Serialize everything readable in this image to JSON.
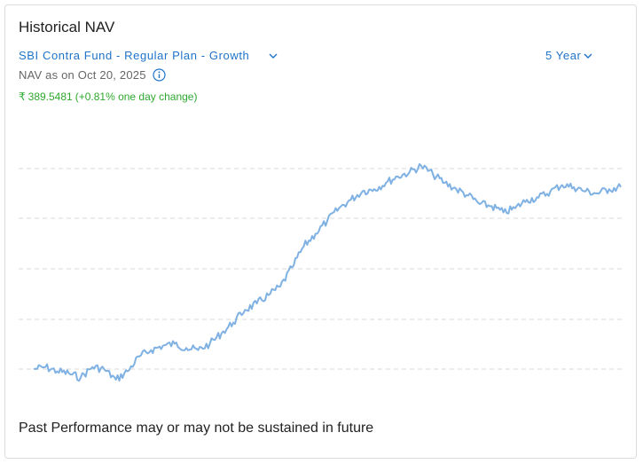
{
  "header": {
    "title": "Historical NAV",
    "fund_selected": "SBI Contra Fund - Regular Plan - Growth",
    "period_selected": "5 Year",
    "nav_as_of": "NAV as on Oct 20, 2025",
    "nav_value": "389.5481",
    "nav_change": "(+0.81% one day change)",
    "currency_symbol": "₹"
  },
  "footer": {
    "disclaimer": "Past Performance may or may not be sustained in future"
  },
  "colors": {
    "line": "#7fb1e3",
    "accent": "#1f73c9",
    "positive": "#2fa82f",
    "grid": "#d9d9d9"
  },
  "chart_data": {
    "type": "line",
    "title": "",
    "xlabel": "",
    "ylabel": "",
    "grid": true,
    "legend": "none",
    "x": [
      0,
      2,
      4,
      6,
      8,
      10,
      12,
      14,
      16,
      18,
      20,
      22,
      24,
      26,
      28,
      30,
      32,
      34,
      36,
      38,
      40,
      42,
      44,
      46,
      48,
      50,
      52,
      54,
      56,
      58,
      60,
      62,
      64,
      66,
      68,
      70,
      72,
      74,
      76,
      78,
      80,
      82,
      84,
      86,
      88,
      90,
      92,
      94,
      96,
      98,
      100
    ],
    "values": [
      0.04,
      0.05,
      0.03,
      0.02,
      0.0,
      0.05,
      0.04,
      -0.01,
      0.03,
      0.1,
      0.13,
      0.15,
      0.16,
      0.14,
      0.13,
      0.16,
      0.21,
      0.26,
      0.32,
      0.35,
      0.39,
      0.43,
      0.52,
      0.62,
      0.68,
      0.74,
      0.8,
      0.84,
      0.88,
      0.89,
      0.92,
      0.95,
      0.97,
      1.0,
      0.96,
      0.92,
      0.89,
      0.86,
      0.82,
      0.81,
      0.78,
      0.8,
      0.84,
      0.85,
      0.88,
      0.91,
      0.9,
      0.88,
      0.87,
      0.89,
      0.9
    ]
  }
}
